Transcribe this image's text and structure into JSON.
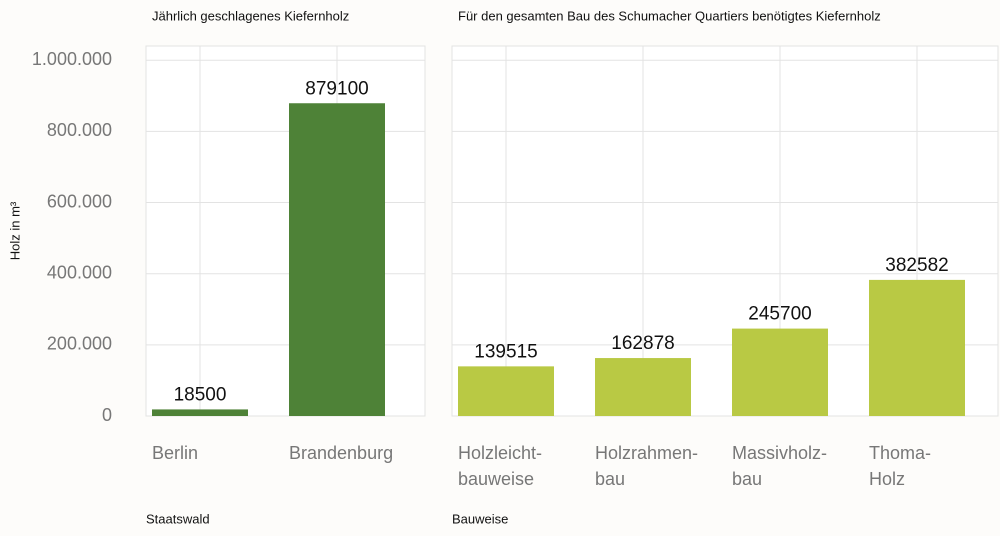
{
  "chart_data": [
    {
      "type": "bar",
      "title": "Jährlich geschlagenes Kiefernholz",
      "y_label": "Holz in m³",
      "x_label": "Staatswald",
      "categories": [
        "Berlin",
        "Brandenburg"
      ],
      "values": [
        18500,
        879100
      ],
      "color": "#4e8237",
      "ylim": [
        0,
        1040000
      ],
      "yticks": [
        0,
        {
          "value": 200000,
          "label": "200.000"
        },
        {
          "value": 400000,
          "label": "400.000"
        },
        {
          "value": 600000,
          "label": "600.000"
        },
        {
          "value": 800000,
          "label": "800.000"
        },
        {
          "value": 1000000,
          "label": "1.000.000"
        }
      ],
      "grid": true
    },
    {
      "type": "bar",
      "title": "Für den gesamten Bau des Schumacher Quartiers benötigtes Kiefernholz",
      "x_label": "Bauweise",
      "categories": [
        "Holzleicht-\nbauweise",
        "Holzrahmen-\nbau",
        "Massivholz-\nbau",
        "Thoma-\nHolz"
      ],
      "values": [
        139515,
        162878,
        245700,
        382582
      ],
      "color": "#b9c944",
      "ylim": [
        0,
        1040000
      ],
      "yticks": [
        0,
        {
          "value": 200000,
          "label": "200.000"
        },
        {
          "value": 400000,
          "label": "400.000"
        },
        {
          "value": 600000,
          "label": "600.000"
        },
        {
          "value": 800000,
          "label": "800.000"
        },
        {
          "value": 1000000,
          "label": "1.000.000"
        }
      ],
      "grid": true
    }
  ]
}
